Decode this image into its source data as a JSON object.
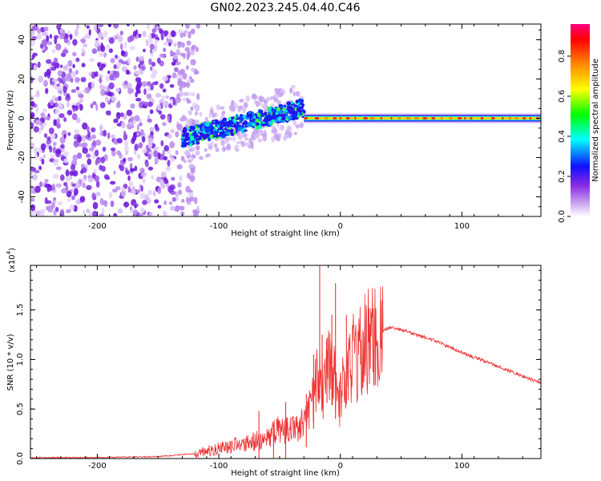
{
  "title": "GN02.2023.245.04.40.C46",
  "chart_data": [
    {
      "type": "heatmap",
      "xlabel": "Height of straight line (km)",
      "ylabel": "Frequency (Hz)",
      "xlim": [
        -255,
        165
      ],
      "ylim": [
        -50,
        48
      ],
      "xticks": [
        -200,
        -100,
        0,
        100
      ],
      "yticks": [
        -40,
        -20,
        0,
        20,
        40
      ],
      "colorbar": {
        "label": "Normalized spectral amplitude",
        "range": [
          0.0,
          0.96
        ],
        "ticks": [
          "0.0",
          "0.2",
          "0.4",
          "0.6",
          "0.8"
        ],
        "colormap": [
          "#ffffff",
          "#8a2be2",
          "#0000ff",
          "#00ffff",
          "#00ff00",
          "#ffff00",
          "#ff8000",
          "#ff0000",
          "#ff0080"
        ]
      },
      "features": {
        "noise_region_x": [
          -255,
          -125
        ],
        "rising_signal_x": [
          -130,
          -30
        ],
        "rising_signal_y": [
          -10,
          5
        ],
        "carrier_line_x": [
          -30,
          165
        ],
        "carrier_line_y": 0
      }
    },
    {
      "type": "line",
      "xlabel": "Height of straight line (km)",
      "ylabel": "SNR (10 * v/v)",
      "scale_label": "(x10",
      "scale_exp": "4",
      "scale_close": ")",
      "xlim": [
        -255,
        165
      ],
      "ylim": [
        0,
        1.95
      ],
      "xticks": [
        -200,
        -100,
        0,
        100
      ],
      "yticks": [
        "0.0",
        "0.5",
        "1.0",
        "1.5"
      ],
      "color": "#ee3333",
      "x": [
        -255,
        -200,
        -150,
        -120,
        -100,
        -80,
        -60,
        -50,
        -40,
        -30,
        -22,
        -17,
        -14,
        -10,
        -5,
        -2,
        5,
        10,
        20,
        30,
        40,
        50,
        80,
        100,
        130,
        165
      ],
      "y": [
        0.01,
        0.01,
        0.02,
        0.05,
        0.1,
        0.15,
        0.2,
        0.3,
        0.28,
        0.35,
        0.6,
        0.9,
        0.75,
        0.9,
        0.8,
        0.5,
        0.85,
        1.0,
        1.15,
        1.25,
        1.32,
        1.3,
        1.18,
        1.07,
        0.93,
        0.76
      ],
      "spikes": [
        {
          "x": -67,
          "y": 0.48
        },
        {
          "x": -55,
          "y": 0.35
        },
        {
          "x": -45,
          "y": 0.57
        },
        {
          "x": -28,
          "y": 0.65
        },
        {
          "x": -22,
          "y": 1.05
        },
        {
          "x": -17,
          "y": 1.95
        },
        {
          "x": -15,
          "y": 1.25
        },
        {
          "x": -11,
          "y": 1.22
        },
        {
          "x": -7,
          "y": 1.45
        },
        {
          "x": -4,
          "y": 1.77
        },
        {
          "x": 5,
          "y": 1.45
        }
      ]
    }
  ]
}
